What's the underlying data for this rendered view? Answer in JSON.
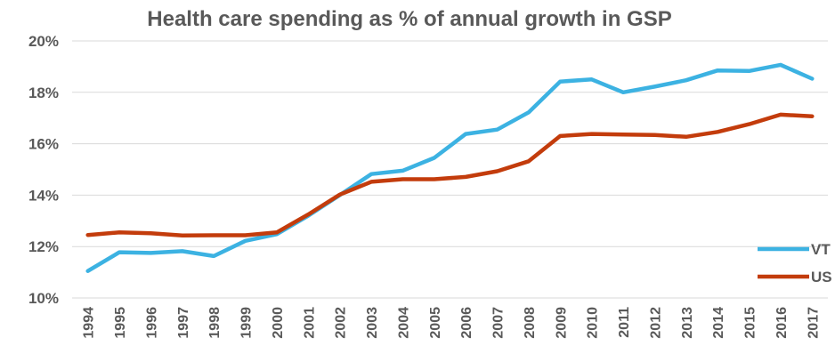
{
  "chart_data": {
    "type": "line",
    "title": "Health care spending as % of annual growth in GSP",
    "xlabel": "",
    "ylabel": "",
    "categories": [
      "1994",
      "1995",
      "1996",
      "1997",
      "1998",
      "1999",
      "2000",
      "2001",
      "2002",
      "2003",
      "2004",
      "2005",
      "2006",
      "2007",
      "2008",
      "2009",
      "2010",
      "2011",
      "2012",
      "2013",
      "2014",
      "2015",
      "2016",
      "2017"
    ],
    "ylim": [
      10,
      20
    ],
    "yticks": [
      10,
      12,
      14,
      16,
      18,
      20
    ],
    "ytick_labels": [
      "10%",
      "12%",
      "14%",
      "16%",
      "18%",
      "20%"
    ],
    "grid": true,
    "legend_position": "right",
    "series": [
      {
        "name": "VT",
        "color": "#3cb2e2",
        "values": [
          11.05,
          11.78,
          11.75,
          11.82,
          11.63,
          12.22,
          12.48,
          13.2,
          14.0,
          14.82,
          14.95,
          15.45,
          16.38,
          16.55,
          17.22,
          18.42,
          18.5,
          18.0,
          18.22,
          18.47,
          18.85,
          18.83,
          19.07,
          18.53
        ]
      },
      {
        "name": "US",
        "color": "#c33c0c",
        "values": [
          12.45,
          12.55,
          12.52,
          12.43,
          12.44,
          12.44,
          12.55,
          13.25,
          14.02,
          14.52,
          14.62,
          14.62,
          14.71,
          14.93,
          15.32,
          16.3,
          16.38,
          16.36,
          16.34,
          16.27,
          16.46,
          16.76,
          17.13,
          17.07
        ]
      }
    ]
  }
}
